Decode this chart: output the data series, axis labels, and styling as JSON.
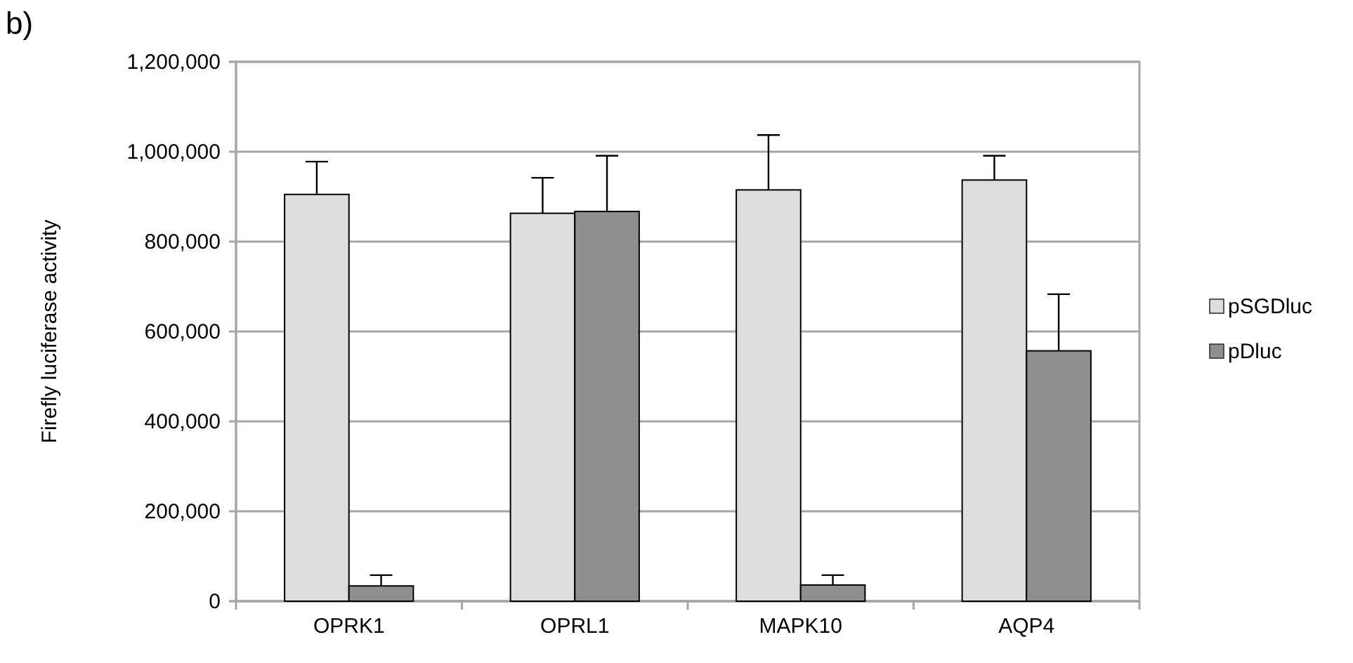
{
  "chart_data": {
    "type": "bar",
    "ylabel": "Firefly luciferase activity",
    "annotations": [
      "b)"
    ],
    "categories": [
      "OPRK1",
      "OPRL1",
      "MAPK10",
      "AQP4"
    ],
    "series": [
      {
        "name": "pSGDluc",
        "color": "#dddddd",
        "values": [
          905000,
          863000,
          915000,
          937000
        ],
        "errors": [
          [
            905000,
            978000
          ],
          [
            863000,
            942000
          ],
          [
            915000,
            1037000
          ],
          [
            937000,
            991000
          ]
        ]
      },
      {
        "name": "pDluc",
        "color": "#8f8f8f",
        "values": [
          34000,
          867000,
          36000,
          557000
        ],
        "errors": [
          [
            34000,
            58000
          ],
          [
            867000,
            991000
          ],
          [
            36000,
            58000
          ],
          [
            557000,
            683000
          ]
        ]
      }
    ],
    "ylim": [
      0,
      1200000
    ],
    "yticks": [
      {
        "value": 0,
        "label": "0"
      },
      {
        "value": 200000,
        "label": "200,000"
      },
      {
        "value": 400000,
        "label": "400,000"
      },
      {
        "value": 600000,
        "label": "600,000"
      },
      {
        "value": 800000,
        "label": "800,000"
      },
      {
        "value": 1000000,
        "label": "1,000,000"
      },
      {
        "value": 1200000,
        "label": "1,200,000"
      }
    ],
    "grid": "y",
    "legend": "right"
  }
}
